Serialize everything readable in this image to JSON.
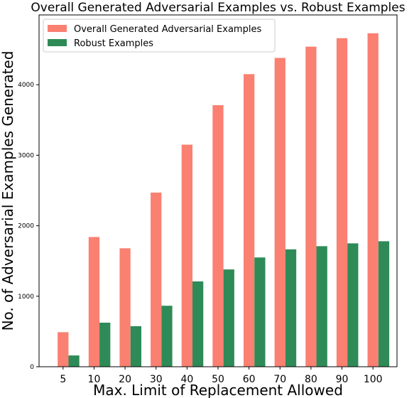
{
  "chart_data": {
    "type": "bar",
    "title": "Overall Generated Adversarial Examples vs. Robust Examples",
    "xlabel": "Max. Limit of Replacement Allowed",
    "ylabel": "No. of Adversarial Examples Generated",
    "categories": [
      "5",
      "10",
      "20",
      "30",
      "40",
      "50",
      "60",
      "70",
      "80",
      "90",
      "100"
    ],
    "series": [
      {
        "name": "Overall Generated Adversarial Examples",
        "color": "#fa8072",
        "values": [
          490,
          1840,
          1680,
          2470,
          3150,
          3710,
          4150,
          4380,
          4540,
          4660,
          4730
        ]
      },
      {
        "name": "Robust Examples",
        "color": "#2e8b57",
        "values": [
          160,
          625,
          575,
          865,
          1210,
          1380,
          1550,
          1665,
          1710,
          1750,
          1780
        ]
      }
    ],
    "yticks": [
      0,
      1000,
      2000,
      3000,
      4000
    ],
    "ylim": [
      0,
      4990
    ],
    "legend_position": "top-left",
    "grid": false
  }
}
